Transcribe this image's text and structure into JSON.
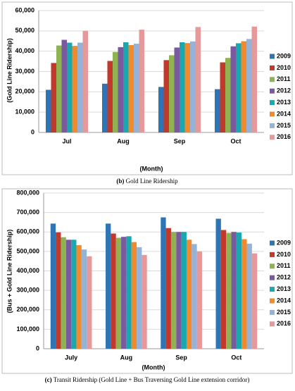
{
  "chart_data": [
    {
      "type": "bar",
      "caption_label": "(b)",
      "caption": "Gold Line Ridership",
      "xlabel": "(Month)",
      "ylabel": "(Gold Line Ridership)",
      "categories": [
        "Jul",
        "Aug",
        "Sep",
        "Oct"
      ],
      "ylim": [
        0,
        60000
      ],
      "yticks": [
        0,
        {
          "value": 10000,
          "label": "10,000"
        },
        {
          "value": 20000,
          "label": "20,000"
        },
        {
          "value": 30000,
          "label": "30,000"
        },
        {
          "value": 40000,
          "label": "40,000"
        },
        {
          "value": 50000,
          "label": "50,000"
        },
        {
          "value": 60000,
          "label": "60,000"
        }
      ],
      "grid": true,
      "legend": "right",
      "series": [
        {
          "name": "2009",
          "color": "#2e75b6",
          "values": [
            21000,
            24000,
            22400,
            21300
          ]
        },
        {
          "name": "2010",
          "color": "#c0392b",
          "values": [
            34200,
            35200,
            35600,
            34500
          ]
        },
        {
          "name": "2011",
          "color": "#8fb350",
          "values": [
            42800,
            39600,
            38000,
            36700
          ]
        },
        {
          "name": "2012",
          "color": "#7a5a9e",
          "values": [
            45600,
            42000,
            41800,
            42400
          ]
        },
        {
          "name": "2013",
          "color": "#1aa8b0",
          "values": [
            44200,
            44400,
            44400,
            43900
          ]
        },
        {
          "name": "2014",
          "color": "#f08a2c",
          "values": [
            42600,
            43000,
            44000,
            44900
          ]
        },
        {
          "name": "2015",
          "color": "#95b3d7",
          "values": [
            44200,
            43700,
            44800,
            46000
          ]
        },
        {
          "name": "2016",
          "color": "#e6999b",
          "values": [
            50000,
            50600,
            51900,
            52100
          ]
        }
      ]
    },
    {
      "type": "bar",
      "caption_label": "(c)",
      "caption": "Transit Ridership (Gold Line + Bus Traversing Gold Line extension corridor)",
      "xlabel": "(Month)",
      "ylabel": "(Bus + Gold Line Ridership)",
      "categories": [
        "July",
        "Aug",
        "Sep",
        "Oct"
      ],
      "ylim": [
        0,
        800000
      ],
      "yticks": [
        0,
        {
          "value": 100000,
          "label": "100,000"
        },
        {
          "value": 200000,
          "label": "200,000"
        },
        {
          "value": 300000,
          "label": "300,000"
        },
        {
          "value": 400000,
          "label": "400,000"
        },
        {
          "value": 500000,
          "label": "500,000"
        },
        {
          "value": 600000,
          "label": "600,000"
        },
        {
          "value": 700000,
          "label": "700,000"
        },
        {
          "value": 800000,
          "label": "800,000"
        }
      ],
      "grid": true,
      "legend": "right",
      "series": [
        {
          "name": "2009",
          "color": "#2e75b6",
          "values": [
            643000,
            643000,
            675000,
            668000
          ]
        },
        {
          "name": "2010",
          "color": "#c0392b",
          "values": [
            598000,
            592000,
            620000,
            610000
          ]
        },
        {
          "name": "2011",
          "color": "#8fb350",
          "values": [
            573000,
            570000,
            600000,
            595000
          ]
        },
        {
          "name": "2012",
          "color": "#7a5a9e",
          "values": [
            560000,
            575000,
            600000,
            600000
          ]
        },
        {
          "name": "2013",
          "color": "#1aa8b0",
          "values": [
            560000,
            578000,
            600000,
            597000
          ]
        },
        {
          "name": "2014",
          "color": "#f08a2c",
          "values": [
            532000,
            548000,
            560000,
            563000
          ]
        },
        {
          "name": "2015",
          "color": "#95b3d7",
          "values": [
            510000,
            522000,
            538000,
            540000
          ]
        },
        {
          "name": "2016",
          "color": "#e6999b",
          "values": [
            475000,
            482000,
            500000,
            490000
          ]
        }
      ]
    }
  ]
}
